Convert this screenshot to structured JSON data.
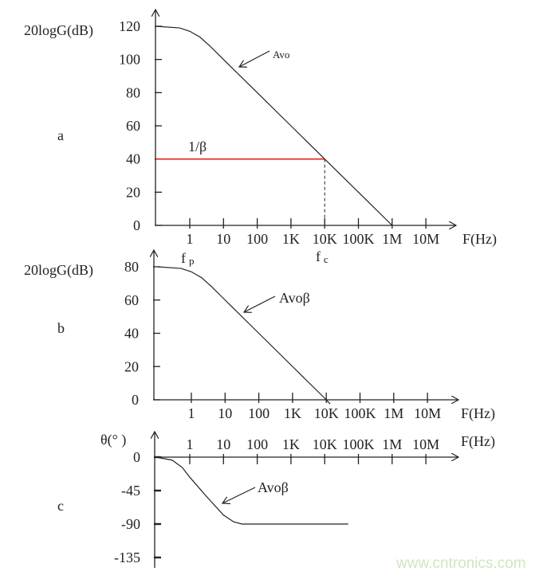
{
  "watermark": "www.cntronics.com",
  "colors": {
    "axis": "#222222",
    "curve": "#222222",
    "feedback_line": "#e0201c",
    "watermark": "#cfe6c0"
  },
  "chart_data": [
    {
      "type": "line",
      "panel_label": "a",
      "ylabel": "20logG(dB)",
      "xlabel": "F(Hz)",
      "x_scale": "log",
      "xticks": [
        "1",
        "10",
        "100",
        "1K",
        "10K",
        "100K",
        "1M",
        "10M"
      ],
      "xtick_values": [
        1,
        10,
        100,
        1000,
        10000,
        100000,
        1000000,
        10000000
      ],
      "yticks": [
        "120",
        "100",
        "80",
        "60",
        "40",
        "20",
        "0"
      ],
      "ytick_values": [
        120,
        100,
        80,
        60,
        40,
        20,
        0
      ],
      "ylim": [
        0,
        120
      ],
      "series": [
        {
          "name": "Avo",
          "points": [
            [
              0.1,
              120
            ],
            [
              0.5,
              119
            ],
            [
              1,
              117
            ],
            [
              2,
              113.5
            ],
            [
              4,
              108
            ],
            [
              10,
              100
            ],
            [
              100,
              80
            ],
            [
              1000,
              60
            ],
            [
              10000,
              40
            ],
            [
              100000,
              20
            ],
            [
              1000000,
              0
            ]
          ]
        },
        {
          "name": "1/β",
          "points": [
            [
              0.1,
              40
            ],
            [
              10000,
              40
            ]
          ],
          "color": "#e0201c"
        }
      ],
      "annotations": [
        {
          "text": "fp",
          "sub": "p",
          "base": "f",
          "at_x": 1
        },
        {
          "text": "fc",
          "sub": "c",
          "base": "f",
          "at_x": 10000,
          "dashed_drop_from": 40
        }
      ]
    },
    {
      "type": "line",
      "panel_label": "b",
      "ylabel": "20logG(dB)",
      "xlabel": "F(Hz)",
      "x_scale": "log",
      "xticks": [
        "1",
        "10",
        "100",
        "1K",
        "10K",
        "100K",
        "1M",
        "10M"
      ],
      "xtick_values": [
        1,
        10,
        100,
        1000,
        10000,
        100000,
        1000000,
        10000000
      ],
      "yticks": [
        "80",
        "60",
        "40",
        "20",
        "0"
      ],
      "ytick_values": [
        80,
        60,
        40,
        20,
        0
      ],
      "ylim": [
        0,
        80
      ],
      "series": [
        {
          "name": "Avoβ",
          "points": [
            [
              0.1,
              80
            ],
            [
              0.5,
              79
            ],
            [
              1,
              77
            ],
            [
              2,
              73.5
            ],
            [
              4,
              68
            ],
            [
              10,
              60
            ],
            [
              100,
              40
            ],
            [
              1000,
              20
            ],
            [
              10000,
              0
            ],
            [
              13000,
              -2.5
            ]
          ]
        }
      ]
    },
    {
      "type": "line",
      "panel_label": "c",
      "ylabel": "θ(° )",
      "xlabel": "F(Hz)",
      "x_scale": "log",
      "xticks": [
        "1",
        "10",
        "100",
        "1K",
        "10K",
        "100K",
        "1M",
        "10M"
      ],
      "xtick_values": [
        1,
        10,
        100,
        1000,
        10000,
        100000,
        1000000,
        10000000
      ],
      "yticks": [
        "0",
        "-45",
        "-90",
        "-135"
      ],
      "ytick_values": [
        0,
        -45,
        -90,
        -135
      ],
      "ylim": [
        -135,
        0
      ],
      "series": [
        {
          "name": "Avoβ",
          "points": [
            [
              0.1,
              0
            ],
            [
              0.3,
              -4
            ],
            [
              0.6,
              -14
            ],
            [
              1,
              -27
            ],
            [
              3,
              -52
            ],
            [
              10,
              -78
            ],
            [
              20,
              -87
            ],
            [
              35,
              -90
            ],
            [
              50000,
              -90
            ]
          ]
        }
      ]
    }
  ]
}
